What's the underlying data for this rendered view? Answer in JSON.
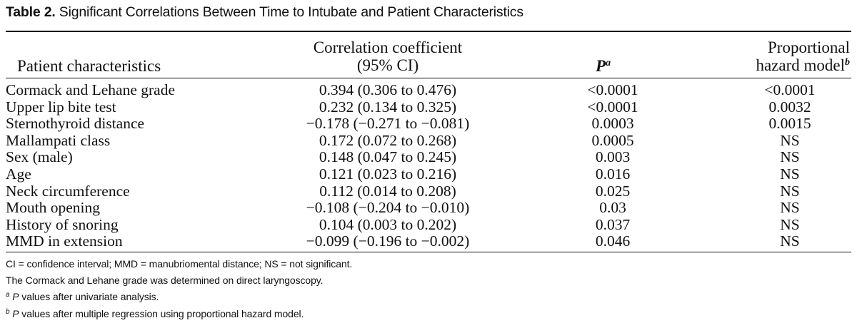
{
  "caption": {
    "number": "Table 2.",
    "title": "Significant Correlations Between Time to Intubate and Patient Characteristics"
  },
  "headers": {
    "characteristic": "Patient characteristics",
    "coefficient_line1": "Correlation coefficient",
    "coefficient_line2": "(95% CI)",
    "p": "P",
    "p_sup": "a",
    "hazard_line1": "Proportional",
    "hazard_line2": "hazard model",
    "hazard_sup": "b"
  },
  "rows": [
    {
      "characteristic": "Cormack and Lehane grade",
      "coefficient": "0.394 (0.306 to 0.476)",
      "p": "<0.0001",
      "hazard": "<0.0001"
    },
    {
      "characteristic": "Upper lip bite test",
      "coefficient": "0.232 (0.134 to 0.325)",
      "p": "<0.0001",
      "hazard": "0.0032"
    },
    {
      "characteristic": "Sternothyroid distance",
      "coefficient": "−0.178 (−0.271 to −0.081)",
      "p": "0.0003",
      "hazard": "0.0015"
    },
    {
      "characteristic": "Mallampati class",
      "coefficient": "0.172 (0.072 to 0.268)",
      "p": "0.0005",
      "hazard": "NS"
    },
    {
      "characteristic": "Sex (male)",
      "coefficient": "0.148 (0.047 to 0.245)",
      "p": "0.003",
      "hazard": "NS"
    },
    {
      "characteristic": "Age",
      "coefficient": "0.121 (0.023 to 0.216)",
      "p": "0.016",
      "hazard": "NS"
    },
    {
      "characteristic": "Neck circumference",
      "coefficient": "0.112 (0.014 to 0.208)",
      "p": "0.025",
      "hazard": "NS"
    },
    {
      "characteristic": "Mouth opening",
      "coefficient": "−0.108 (−0.204 to −0.010)",
      "p": "0.03",
      "hazard": "NS"
    },
    {
      "characteristic": "History of snoring",
      "coefficient": "0.104 (0.003 to 0.202)",
      "p": "0.037",
      "hazard": "NS"
    },
    {
      "characteristic": "MMD in extension",
      "coefficient": "−0.099 (−0.196 to −0.002)",
      "p": "0.046",
      "hazard": "NS"
    }
  ],
  "footnotes": {
    "abbreviations": "CI = confidence interval; MMD = manubriomental distance; NS = not significant.",
    "grade_note": "The Cormack and Lehane grade was determined on direct laryngoscopy.",
    "note_a_mark": "a",
    "note_a_p": "P",
    "note_a_text": " values after univariate analysis.",
    "note_b_mark": "b",
    "note_b_p": "P",
    "note_b_text": " values after multiple regression using proportional hazard model."
  }
}
